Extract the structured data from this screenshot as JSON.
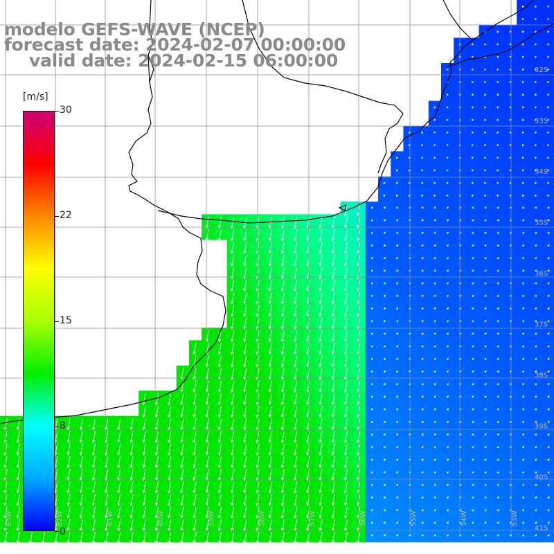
{
  "title": {
    "line1": "modelo GEFS-WAVE (NCEP)",
    "line2": "forecast date: 2024-02-07 00:00:00",
    "line3": "valid date: 2024-02-15 06:00:00"
  },
  "colorbar": {
    "unit": "[m/s]",
    "ticks": [
      "30",
      "22",
      "15",
      "8",
      "0"
    ],
    "tick_values": [
      30,
      22,
      15,
      8,
      0
    ],
    "min": 0,
    "max": 30,
    "colors": [
      "#0000ff",
      "#00aaff",
      "#00ffff",
      "#00ee00",
      "#aaff00",
      "#ffff00",
      "#ff8800",
      "#ff0000",
      "#cc0077"
    ]
  },
  "grid": {
    "lat_labels": [
      "32S",
      "33S",
      "34S",
      "35S",
      "36S",
      "37S",
      "38S",
      "39S",
      "40S",
      "41S"
    ],
    "lon_labels": [
      "63W",
      "62W",
      "61W",
      "60W",
      "59W",
      "58W",
      "57W",
      "56W",
      "55W",
      "54W",
      "53W"
    ]
  },
  "colors": {
    "land": "#ffffff",
    "coast": "#000000",
    "grid": "#8c8c8c",
    "arrow": "#ffffff"
  }
}
